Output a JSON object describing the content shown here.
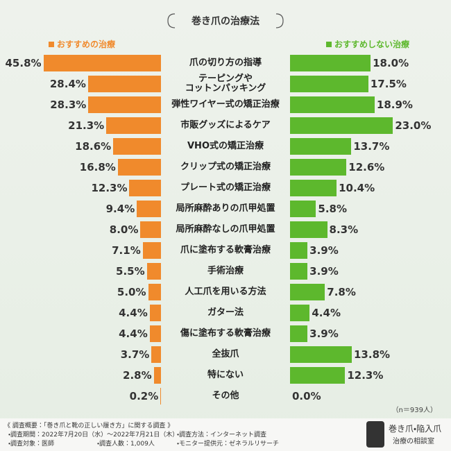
{
  "chart_data": {
    "type": "butterfly",
    "title": "巻き爪の治療法",
    "categories": [
      "爪の切り方の指導",
      "テーピングや\nコットンパッキング",
      "弾性ワイヤー式の矯正治療",
      "市販グッズによるケア",
      "VHO式の矯正治療",
      "クリップ式の矯正治療",
      "プレート式の矯正治療",
      "局所麻酔ありの爪甲処置",
      "局所麻酔なしの爪甲処置",
      "爪に塗布する軟膏治療",
      "手術治療",
      "人工爪を用いる方法",
      "ガター法",
      "傷に塗布する軟膏治療",
      "全抜爪",
      "特にない",
      "その他"
    ],
    "series": [
      {
        "name": "おすすめの治療",
        "color": "#f08a2c",
        "values": [
          45.8,
          28.4,
          28.3,
          21.3,
          18.6,
          16.8,
          12.3,
          9.4,
          8.0,
          7.1,
          5.5,
          5.0,
          4.4,
          4.4,
          3.7,
          2.8,
          0.2
        ],
        "value_labels": [
          "45.8%",
          "28.4%",
          "28.3%",
          "21.3%",
          "18.6%",
          "16.8%",
          "12.3%",
          "9.4%",
          "8.0%",
          "7.1%",
          "5.5%",
          "5.0%",
          "4.4%",
          "4.4%",
          "3.7%",
          "2.8%",
          "0.2%"
        ]
      },
      {
        "name": "おすすめしない治療",
        "color": "#5db82d",
        "values": [
          18.0,
          17.5,
          18.9,
          23.0,
          13.7,
          12.6,
          10.4,
          5.8,
          8.3,
          3.9,
          3.9,
          7.8,
          4.4,
          3.9,
          13.8,
          12.3,
          0.0
        ],
        "value_labels": [
          "18.0%",
          "17.5%",
          "18.9%",
          "23.0%",
          "13.7%",
          "12.6%",
          "10.4%",
          "5.8%",
          "8.3%",
          "3.9%",
          "3.9%",
          "7.8%",
          "4.4%",
          "3.9%",
          "13.8%",
          "12.3%",
          "0.0%"
        ]
      }
    ],
    "note": "（n＝939人）"
  },
  "footer": {
    "heading": "《 調査概要：「巻き爪と靴の正しい履き方」に関する調査 》",
    "items": [
      "・調査期間：2022年7月20日（水）～2022年7月21日（木）",
      "・調査方法：インターネット調査",
      "・調査対象：医師",
      "・調査人数：1,009人",
      "・モニター提供元：ゼネラルリサーチ"
    ]
  },
  "logo": {
    "line1": "巻き爪・陥入爪",
    "line2": "治療の相談室"
  }
}
